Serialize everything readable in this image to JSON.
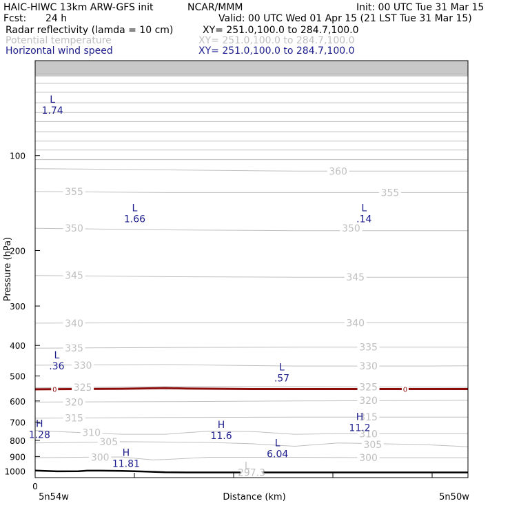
{
  "header": {
    "model": "HAIC-HIWC 13km ARW-GFS init",
    "org": "NCAR/MMM",
    "init": "Init: 00 UTC Tue 31 Mar 15",
    "fcst_label": "Fcst:",
    "fcst_value": "24 h",
    "valid": "Valid: 00 UTC Wed 01 Apr 15 (21 LST Tue 31 Mar 15)",
    "fields": [
      {
        "name": "Radar reflectivity (lamda = 10 cm)",
        "xy": "XY= 251.0,100.0 to 284.7,100.0",
        "color": "#000000"
      },
      {
        "name": "Potential temperature",
        "xy": "XY= 251.0,100.0 to 284.7,100.0",
        "color": "#bfbfbf"
      },
      {
        "name": "Horizontal wind speed",
        "xy": "XY= 251.0,100.0 to 284.7,100.0",
        "color": "#1c1c8c"
      }
    ]
  },
  "chart_data": {
    "type": "line",
    "title": "",
    "xlabel": "Distance (km)",
    "ylabel": "Pressure (hPa)",
    "ylim": [
      1050,
      50
    ],
    "y_scale": "log",
    "yticks": [
      100,
      200,
      300,
      400,
      500,
      600,
      700,
      800,
      900,
      1000
    ],
    "x_start_label": "0",
    "x_end_labels": [
      "5n54w",
      "5n50w"
    ],
    "xlim": [
      0,
      1
    ],
    "theta_contours": [
      {
        "label": "300",
        "x": [
          0,
          0.1,
          0.2,
          0.27,
          0.3,
          0.4,
          0.6,
          0.8,
          1.0
        ],
        "p": [
          908,
          905,
          903,
          922,
          920,
          905,
          905,
          908,
          908
        ]
      },
      {
        "label": "305",
        "x": [
          0,
          0.2,
          0.4,
          0.5,
          0.6,
          0.7,
          0.8,
          0.9,
          1.0
        ],
        "p": [
          815,
          808,
          812,
          820,
          835,
          815,
          820,
          825,
          838
        ]
      },
      {
        "label": "310",
        "x": [
          0,
          0.1,
          0.2,
          0.3,
          0.4,
          0.5,
          0.6,
          0.7,
          0.8,
          0.9,
          1.0
        ],
        "p": [
          745,
          755,
          765,
          765,
          748,
          750,
          765,
          762,
          762,
          762,
          762
        ]
      },
      {
        "label": "315",
        "x": [
          0,
          0.3,
          0.6,
          0.9,
          1.0
        ],
        "p": [
          680,
          677,
          675,
          675,
          675
        ]
      },
      {
        "label": "320",
        "x": [
          0,
          0.3,
          0.6,
          0.9,
          1.0
        ],
        "p": [
          605,
          603,
          600,
          598,
          597
        ]
      },
      {
        "label": "325",
        "x": [
          0,
          0.3,
          0.6,
          0.9,
          1.0
        ],
        "p": [
          545,
          540,
          540,
          542,
          543
        ]
      },
      {
        "label": "330",
        "x": [
          0,
          0.3,
          0.6,
          0.9,
          1.0
        ],
        "p": [
          462,
          460,
          465,
          465,
          464
        ]
      },
      {
        "label": "335",
        "x": [
          0,
          0.3,
          0.6,
          0.9,
          1.0
        ],
        "p": [
          408,
          406,
          405,
          405,
          405
        ]
      },
      {
        "label": "340",
        "x": [
          0,
          0.3,
          0.6,
          0.9,
          1.0
        ],
        "p": [
          340,
          339,
          339,
          339,
          339
        ]
      },
      {
        "label": "345",
        "x": [
          0,
          0.3,
          0.6,
          0.9,
          1.0
        ],
        "p": [
          240,
          242,
          243,
          243,
          243
        ]
      },
      {
        "label": "350",
        "x": [
          0,
          0.3,
          0.6,
          0.9,
          1.0
        ],
        "p": [
          170,
          172,
          173,
          173,
          173
        ]
      },
      {
        "label": "355",
        "x": [
          0,
          0.3,
          0.6,
          0.9,
          1.0
        ],
        "p": [
          130,
          131,
          131,
          131,
          131
        ]
      },
      {
        "label": "360",
        "x": [
          0,
          0.3,
          0.6,
          0.9,
          1.0
        ],
        "p": [
          110,
          111,
          112,
          112,
          112
        ]
      },
      {
        "label": "",
        "x": [
          0,
          1.0
        ],
        "p": [
          103,
          103
        ]
      },
      {
        "label": "",
        "x": [
          0,
          1.0
        ],
        "p": [
          96,
          96
        ]
      },
      {
        "label": "",
        "x": [
          0,
          1.0
        ],
        "p": [
          90,
          90
        ]
      },
      {
        "label": "",
        "x": [
          0,
          1.0
        ],
        "p": [
          84,
          84
        ]
      },
      {
        "label": "",
        "x": [
          0,
          1.0
        ],
        "p": [
          78,
          78
        ]
      },
      {
        "label": "",
        "x": [
          0,
          1.0
        ],
        "p": [
          73,
          73
        ]
      },
      {
        "label": "",
        "x": [
          0,
          1.0
        ],
        "p": [
          68,
          68
        ]
      },
      {
        "label": "",
        "x": [
          0,
          1.0
        ],
        "p": [
          63,
          63
        ]
      },
      {
        "label": "",
        "x": [
          0,
          1.0
        ],
        "p": [
          59,
          59
        ]
      },
      {
        "label": "",
        "x": [
          0,
          1.0
        ],
        "p": [
          55,
          55
        ]
      }
    ],
    "theta_labels": [
      {
        "text": "355",
        "x": 0.09,
        "p": 130
      },
      {
        "text": "360",
        "x": 0.7,
        "p": 112
      },
      {
        "text": "355",
        "x": 0.82,
        "p": 131
      },
      {
        "text": "350",
        "x": 0.09,
        "p": 170
      },
      {
        "text": "350",
        "x": 0.73,
        "p": 170
      },
      {
        "text": "345",
        "x": 0.09,
        "p": 240
      },
      {
        "text": "345",
        "x": 0.74,
        "p": 243
      },
      {
        "text": "340",
        "x": 0.09,
        "p": 340
      },
      {
        "text": "340",
        "x": 0.74,
        "p": 339
      },
      {
        "text": "335",
        "x": 0.09,
        "p": 408
      },
      {
        "text": "335",
        "x": 0.77,
        "p": 405
      },
      {
        "text": "330",
        "x": 0.11,
        "p": 462
      },
      {
        "text": "330",
        "x": 0.77,
        "p": 465
      },
      {
        "text": "325",
        "x": 0.11,
        "p": 543
      },
      {
        "text": "325",
        "x": 0.77,
        "p": 542
      },
      {
        "text": "320",
        "x": 0.09,
        "p": 605
      },
      {
        "text": "320",
        "x": 0.77,
        "p": 598
      },
      {
        "text": "315",
        "x": 0.09,
        "p": 680
      },
      {
        "text": "315",
        "x": 0.77,
        "p": 675
      },
      {
        "text": "310",
        "x": 0.13,
        "p": 755
      },
      {
        "text": "310",
        "x": 0.77,
        "p": 762
      },
      {
        "text": "305",
        "x": 0.17,
        "p": 808
      },
      {
        "text": "305",
        "x": 0.78,
        "p": 825
      },
      {
        "text": "300",
        "x": 0.15,
        "p": 905
      },
      {
        "text": "300",
        "x": 0.77,
        "p": 908
      },
      {
        "text": "297.3",
        "x": 0.5,
        "p": 1010
      }
    ],
    "wind_extrema": [
      {
        "type": "L",
        "value": "1.74",
        "x": 0.04,
        "p": 68
      },
      {
        "type": "L",
        "value": "1.66",
        "x": 0.23,
        "p": 150
      },
      {
        "type": "L",
        "value": ".14",
        "x": 0.76,
        "p": 150
      },
      {
        "type": "L",
        "value": ".36",
        "x": 0.05,
        "p": 440
      },
      {
        "type": "L",
        "value": ".57",
        "x": 0.57,
        "p": 480
      },
      {
        "type": "H",
        "value": "1.28",
        "x": 0.01,
        "p": 725
      },
      {
        "type": "H",
        "value": "11.6",
        "x": 0.43,
        "p": 730
      },
      {
        "type": "H",
        "value": "11.2",
        "x": 0.75,
        "p": 690
      },
      {
        "type": "L",
        "value": "6.04",
        "x": 0.56,
        "p": 835
      },
      {
        "type": "H",
        "value": "11.81",
        "x": 0.21,
        "p": 895
      },
      {
        "type": "L",
        "value": "",
        "x": 0.49,
        "p": 985
      }
    ],
    "zero_contour": {
      "label": "0",
      "label_positions": [
        0.045,
        0.855
      ],
      "x": [
        0,
        0.2,
        0.3,
        0.35,
        0.5,
        0.7,
        0.9,
        1.0
      ],
      "p": [
        551,
        549,
        546,
        548,
        550,
        550,
        550,
        550
      ]
    },
    "terrain": {
      "x": [
        0,
        0.05,
        0.1,
        0.12,
        0.15,
        0.2,
        0.25,
        0.3,
        0.35,
        0.4,
        0.5,
        0.7,
        0.9,
        1.0
      ],
      "p": [
        997,
        1003,
        1002,
        998,
        998,
        1000,
        1004,
        1010,
        1011,
        1011,
        1011,
        1011,
        1011,
        1011
      ]
    },
    "colors": {
      "theta": "#bfbfbf",
      "wind": "#1c1c8c",
      "reflectivity": "#8c0c0c",
      "terrain": "#000000",
      "topband": "#c8c8c8"
    }
  }
}
